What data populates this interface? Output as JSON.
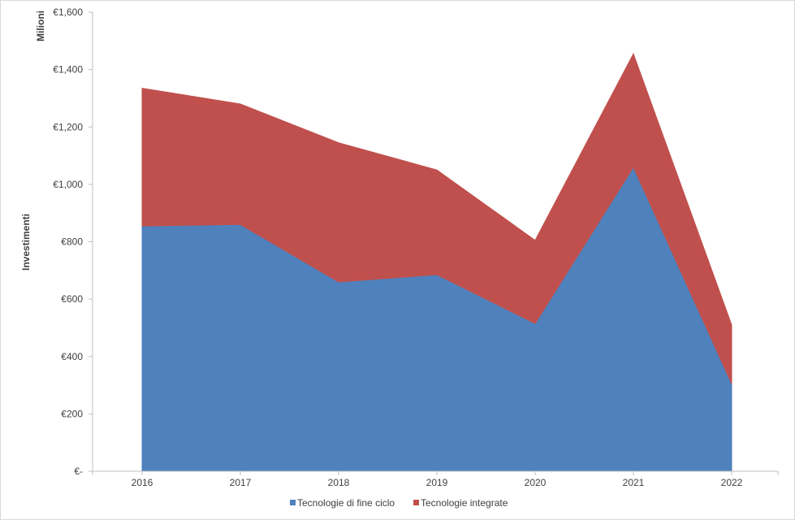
{
  "chart_data": {
    "type": "area",
    "stacked": true,
    "x": [
      "2016",
      "2017",
      "2018",
      "2019",
      "2020",
      "2021",
      "2022"
    ],
    "series": [
      {
        "name": "Tecnologie di fine ciclo",
        "color": "#4f81bd",
        "values": [
          855,
          860,
          660,
          685,
          515,
          1060,
          305
        ]
      },
      {
        "name": "Tecnologie integrate",
        "color": "#c0504d",
        "values": [
          480,
          420,
          485,
          365,
          290,
          395,
          205
        ]
      }
    ],
    "ylim": [
      0,
      1600
    ],
    "yticks": [
      0,
      200,
      400,
      600,
      800,
      1000,
      1200,
      1400,
      1600
    ],
    "ytick_labels": [
      "€-",
      "€200",
      "€400",
      "€600",
      "€800",
      "€1,000",
      "€1,200",
      "€1,400",
      "€1,600"
    ],
    "ylabel": "Investimenti",
    "yunit_label": "Milioni",
    "xlabel": "",
    "title": "",
    "grid": false,
    "legend_position": "bottom"
  }
}
